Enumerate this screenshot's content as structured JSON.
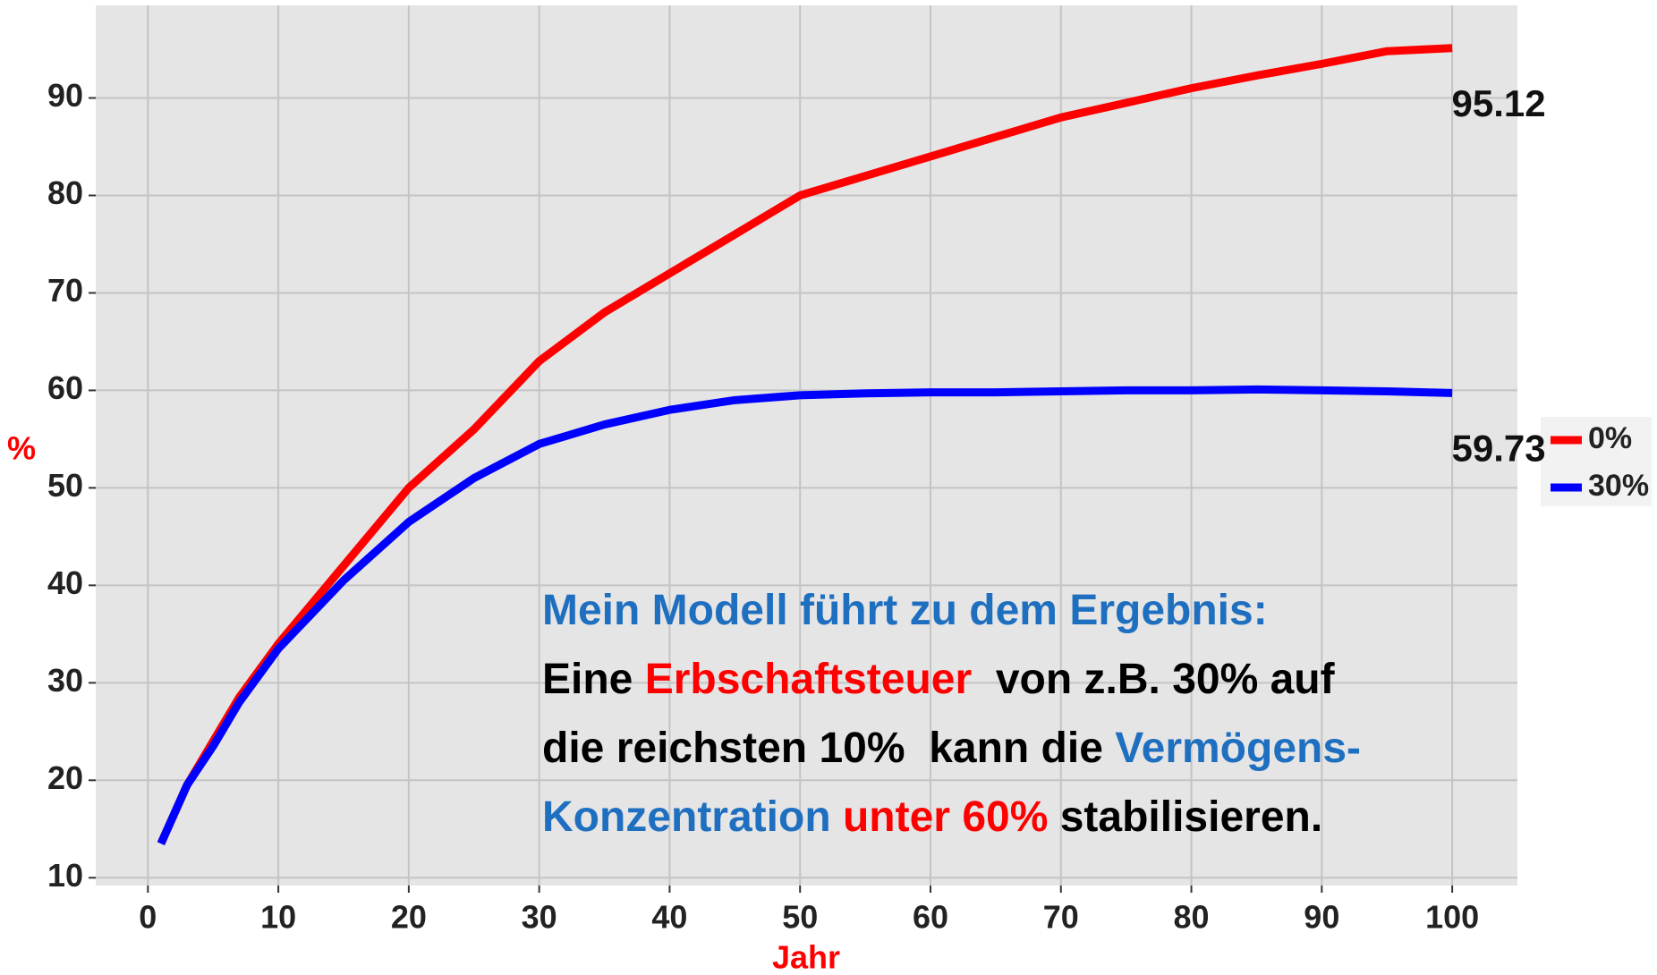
{
  "chart_data": {
    "type": "line",
    "ylabel": "%",
    "xlabel": "Jahr",
    "xlim": [
      -4,
      105
    ],
    "ylim": [
      9.2,
      99.5
    ],
    "xticks": [
      0,
      10,
      20,
      30,
      40,
      50,
      60,
      70,
      80,
      90,
      100
    ],
    "yticks": [
      10,
      20,
      30,
      40,
      50,
      60,
      70,
      80,
      90
    ],
    "grid": true,
    "legend": "right",
    "x": [
      1,
      3,
      5,
      7,
      10,
      15,
      20,
      25,
      30,
      35,
      40,
      45,
      50,
      55,
      60,
      65,
      70,
      75,
      80,
      85,
      90,
      95,
      100
    ],
    "series": [
      {
        "name": "0%",
        "color": "#ff0000",
        "values": [
          13.5,
          19.5,
          24,
          28.5,
          34,
          42,
          50,
          56,
          63,
          68,
          72,
          76,
          80,
          82,
          84,
          86,
          88,
          89.5,
          91,
          92.3,
          93.5,
          94.8,
          95.12
        ]
      },
      {
        "name": "30%",
        "color": "#0000ff",
        "values": [
          13.5,
          19.5,
          23.5,
          28,
          33.5,
          40.5,
          46.5,
          51,
          54.5,
          56.5,
          58,
          59,
          59.5,
          59.7,
          59.8,
          59.8,
          59.9,
          60,
          60,
          60.1,
          60,
          59.9,
          59.73
        ]
      }
    ],
    "annotation": [
      [
        {
          "text": "Mein Modell führt zu dem Ergebnis:",
          "color": "#1f6fc0"
        }
      ],
      [
        {
          "text": "Eine ",
          "color": "#000000"
        },
        {
          "text": "Erbschaftsteuer",
          "color": "#ff0000"
        },
        {
          "text": "  von z.B. 30% auf",
          "color": "#000000"
        }
      ],
      [
        {
          "text": "die reichsten 10%  kann die ",
          "color": "#000000"
        },
        {
          "text": "Vermögens-",
          "color": "#1f6fc0"
        }
      ],
      [
        {
          "text": "Konzentration ",
          "color": "#1f6fc0"
        },
        {
          "text": "unter 60%",
          "color": "#ff0000"
        },
        {
          "text": " stabilisieren.",
          "color": "#000000"
        }
      ]
    ]
  }
}
